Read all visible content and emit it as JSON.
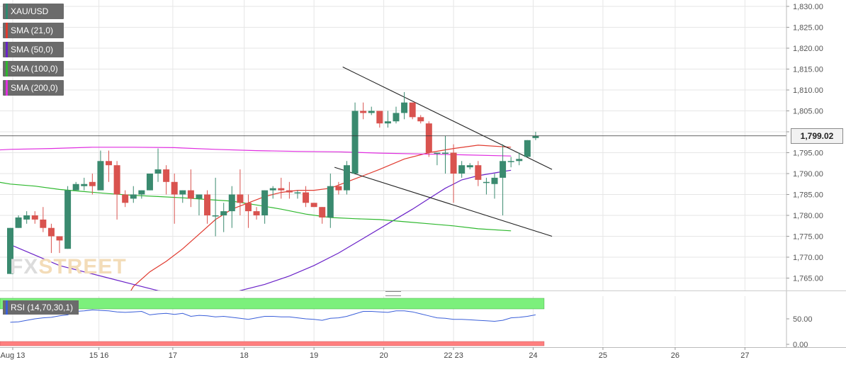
{
  "chart_data": {
    "type": "candlestick",
    "symbol": "XAU/USD",
    "last_price": "1,799.02",
    "ylim": [
      1760,
      1832
    ],
    "y_ticks": [
      "1,830.00",
      "1,825.00",
      "1,820.00",
      "1,815.00",
      "1,810.00",
      "1,805.00",
      "1,800.00",
      "1,795.00",
      "1,790.00",
      "1,785.00",
      "1,780.00",
      "1,775.00",
      "1,770.00",
      "1,765.00"
    ],
    "y_tick_values": [
      1830,
      1825,
      1820,
      1815,
      1810,
      1805,
      1800,
      1795,
      1790,
      1785,
      1780,
      1775,
      1770,
      1765
    ],
    "x_tick_labels": [
      {
        "label": "Aug 13",
        "bar": 0.3
      },
      {
        "label": "15 16",
        "bar": 10.8
      },
      {
        "label": "17",
        "bar": 19.8
      },
      {
        "label": "18",
        "bar": 28.5
      },
      {
        "label": "19",
        "bar": 37.0
      },
      {
        "label": "20",
        "bar": 45.5
      },
      {
        "label": "22 23",
        "bar": 54.0
      },
      {
        "label": "24",
        "bar": 63.7
      },
      {
        "label": "25",
        "bar": 72.2
      },
      {
        "label": "26",
        "bar": 81.0
      },
      {
        "label": "27",
        "bar": 89.5
      }
    ],
    "candles": [
      [
        1766,
        1777,
        1766,
        1777
      ],
      [
        1777,
        1780,
        1777,
        1779.5
      ],
      [
        1779,
        1781,
        1778,
        1780
      ],
      [
        1780,
        1781,
        1778,
        1779
      ],
      [
        1779,
        1782,
        1776,
        1777
      ],
      [
        1777,
        1778,
        1771,
        1775
      ],
      [
        1775,
        1775,
        1771,
        1774
      ],
      [
        1772,
        1787,
        1772,
        1786
      ],
      [
        1786,
        1788,
        1786,
        1787.5
      ],
      [
        1787,
        1789,
        1786,
        1787.5
      ],
      [
        1788,
        1790,
        1785,
        1787
      ],
      [
        1786,
        1795.5,
        1786,
        1793
      ],
      [
        1793,
        1795.5,
        1788,
        1792
      ],
      [
        1792,
        1793,
        1779,
        1785
      ],
      [
        1785,
        1786,
        1782,
        1783
      ],
      [
        1784,
        1787,
        1783,
        1785
      ],
      [
        1785,
        1786,
        1784,
        1786
      ],
      [
        1786,
        1790,
        1786,
        1790
      ],
      [
        1790,
        1796,
        1788,
        1791
      ],
      [
        1791,
        1792,
        1785,
        1788
      ],
      [
        1788,
        1790,
        1778,
        1785
      ],
      [
        1785,
        1786,
        1783,
        1786
      ],
      [
        1786,
        1791,
        1782,
        1784
      ],
      [
        1784,
        1785,
        1780,
        1785
      ],
      [
        1785,
        1786,
        1778,
        1780
      ],
      [
        1780,
        1789,
        1775,
        1780
      ],
      [
        1780,
        1783,
        1776,
        1781
      ],
      [
        1781,
        1787,
        1777,
        1785
      ],
      [
        1785,
        1791,
        1780,
        1783
      ],
      [
        1783,
        1785,
        1777,
        1781
      ],
      [
        1781,
        1782,
        1779,
        1780
      ],
      [
        1780,
        1786,
        1778,
        1786
      ],
      [
        1786,
        1787,
        1784,
        1786.5
      ],
      [
        1786.5,
        1789,
        1784,
        1786
      ],
      [
        1786,
        1788,
        1784,
        1785.5
      ],
      [
        1785.5,
        1786,
        1784,
        1785.5
      ],
      [
        1785.5,
        1787,
        1782,
        1783
      ],
      [
        1783,
        1783,
        1782,
        1782
      ],
      [
        1782,
        1782,
        1778,
        1779.5
      ],
      [
        1779.5,
        1790,
        1777,
        1787
      ],
      [
        1787,
        1788,
        1785,
        1786
      ],
      [
        1786,
        1793,
        1785,
        1792
      ],
      [
        1790,
        1807,
        1790,
        1805
      ],
      [
        1805,
        1807,
        1803,
        1804.5
      ],
      [
        1804.5,
        1806,
        1804,
        1805
      ],
      [
        1805,
        1805,
        1801,
        1802
      ],
      [
        1802,
        1805,
        1801,
        1802.5
      ],
      [
        1802.5,
        1806,
        1802,
        1804.5
      ],
      [
        1804.5,
        1809.5,
        1803,
        1807
      ],
      [
        1807,
        1807,
        1803,
        1803.5
      ],
      [
        1803.5,
        1804,
        1802,
        1802.5
      ],
      [
        1802,
        1802.5,
        1794,
        1795
      ],
      [
        1795,
        1795,
        1792,
        1795
      ],
      [
        1795,
        1799,
        1790,
        1795
      ],
      [
        1795,
        1797,
        1783,
        1790
      ],
      [
        1790,
        1793,
        1789,
        1792
      ],
      [
        1791.5,
        1792.5,
        1791,
        1792
      ],
      [
        1792,
        1793,
        1787,
        1788.5
      ],
      [
        1788,
        1789,
        1785,
        1788
      ],
      [
        1787.5,
        1790,
        1784,
        1789
      ],
      [
        1789,
        1797,
        1780,
        1793
      ],
      [
        1793,
        1794,
        1791.5,
        1793
      ],
      [
        1793,
        1795,
        1792,
        1793.5
      ],
      [
        1794,
        1798,
        1794,
        1798
      ],
      [
        1798.5,
        1800,
        1798,
        1799.02
      ]
    ],
    "series": [
      {
        "name": "SMA (21,0)",
        "color": "#e03a2f",
        "values": [
          [
            13.5,
            1758
          ],
          [
            15,
            1763
          ],
          [
            17,
            1766.5
          ],
          [
            19,
            1769
          ],
          [
            21,
            1772
          ],
          [
            23,
            1775.5
          ],
          [
            25,
            1779
          ],
          [
            27,
            1781.5
          ],
          [
            29,
            1783
          ],
          [
            31,
            1784.5
          ],
          [
            33,
            1785.5
          ],
          [
            35,
            1786
          ],
          [
            37,
            1786
          ],
          [
            39,
            1786.5
          ],
          [
            41,
            1788
          ],
          [
            43,
            1789.5
          ],
          [
            45,
            1791
          ],
          [
            48,
            1793.5
          ],
          [
            51,
            1795
          ],
          [
            54,
            1796
          ],
          [
            57,
            1796.8
          ],
          [
            61,
            1796.3
          ]
        ]
      },
      {
        "name": "SMA (50,0)",
        "color": "#6a22c8",
        "values": [
          [
            0,
            1773
          ],
          [
            3,
            1770.5
          ],
          [
            6,
            1768
          ],
          [
            9,
            1766.5
          ],
          [
            12,
            1765
          ],
          [
            15,
            1763.5
          ],
          [
            18,
            1762
          ],
          [
            22,
            1761.2
          ],
          [
            26,
            1761
          ],
          [
            28,
            1762
          ],
          [
            31,
            1763.5
          ],
          [
            34,
            1765.5
          ],
          [
            37,
            1768
          ],
          [
            40,
            1771
          ],
          [
            43,
            1774.5
          ],
          [
            46,
            1778
          ],
          [
            49,
            1781.5
          ],
          [
            51,
            1784
          ],
          [
            53,
            1786.5
          ],
          [
            55,
            1788.5
          ],
          [
            57,
            1789.5
          ],
          [
            60,
            1790.5
          ],
          [
            61,
            1790.8
          ]
        ]
      },
      {
        "name": "SMA (100,0)",
        "color": "#2eb82e",
        "values": [
          [
            -10,
            1791
          ],
          [
            -6,
            1789.5
          ],
          [
            -3,
            1788.5
          ],
          [
            0,
            1787.5
          ],
          [
            3,
            1787
          ],
          [
            6,
            1786.2
          ],
          [
            9,
            1785.7
          ],
          [
            12,
            1785.2
          ],
          [
            15,
            1784.8
          ],
          [
            18,
            1784.5
          ],
          [
            21,
            1784.2
          ],
          [
            24,
            1783.8
          ],
          [
            27,
            1783.4
          ],
          [
            30,
            1782.5
          ],
          [
            33,
            1781.5
          ],
          [
            36,
            1780.3
          ],
          [
            39,
            1779.5
          ],
          [
            42,
            1779.2
          ],
          [
            45,
            1779
          ],
          [
            48,
            1778.5
          ],
          [
            51,
            1778
          ],
          [
            54,
            1777.5
          ],
          [
            57,
            1776.8
          ],
          [
            61,
            1776.3
          ]
        ]
      },
      {
        "name": "SMA (200,0)",
        "color": "#e02ee0",
        "values": [
          [
            -10,
            1795.5
          ],
          [
            -6,
            1795.4
          ],
          [
            -3,
            1795.5
          ],
          [
            0,
            1795.8
          ],
          [
            5,
            1796
          ],
          [
            10,
            1796.3
          ],
          [
            15,
            1796.3
          ],
          [
            20,
            1796.2
          ],
          [
            25,
            1795.8
          ],
          [
            30,
            1795.5
          ],
          [
            35,
            1795.3
          ],
          [
            40,
            1795.2
          ],
          [
            45,
            1794.9
          ],
          [
            50,
            1794.7
          ],
          [
            55,
            1794.5
          ],
          [
            61,
            1794.2
          ]
        ]
      }
    ],
    "trendlines": [
      {
        "points": [
          [
            40.5,
            1815.5
          ],
          [
            66,
            1791
          ]
        ],
        "color": "#222222"
      },
      {
        "points": [
          [
            39.5,
            1791.5
          ],
          [
            66,
            1775
          ]
        ],
        "color": "#222222"
      }
    ],
    "rsi": {
      "label": "RSI (14,70,30,1)",
      "ticks": [
        "50.00",
        "0.00"
      ],
      "tick_values": [
        50,
        0
      ],
      "overbought": 70,
      "oversold": 30,
      "values": [
        43,
        44,
        47,
        50,
        52,
        53,
        56,
        58,
        65,
        66,
        68,
        67,
        66,
        64,
        63,
        64,
        65,
        58,
        60,
        61,
        59,
        61,
        55,
        57,
        56,
        54,
        55,
        53,
        51,
        49,
        52,
        55,
        55,
        54,
        54,
        52,
        50,
        49,
        47,
        51,
        52,
        55,
        60,
        65,
        65,
        64,
        63,
        66,
        66,
        64,
        60,
        56,
        52,
        51,
        49,
        49,
        48,
        47,
        46,
        45,
        47,
        52,
        53,
        55,
        58
      ]
    }
  },
  "legend": [
    {
      "label": "XAU/USD",
      "color": "#2d8a70"
    },
    {
      "label": "SMA (21,0)",
      "color": "#e03a2f"
    },
    {
      "label": "SMA (50,0)",
      "color": "#6a22c8"
    },
    {
      "label": "SMA (100,0)",
      "color": "#2eb82e"
    },
    {
      "label": "SMA (200,0)",
      "color": "#e02ee0"
    }
  ],
  "watermark": {
    "part1": "FX",
    "part2": "STREET"
  },
  "colors": {
    "up": "#3a8a6f",
    "down": "#d9534f",
    "grid": "#e6e6e6",
    "rsi_up": "#7cf07c",
    "rsi_down": "#ff7f7f",
    "rsi_line": "#3a5fd9"
  }
}
